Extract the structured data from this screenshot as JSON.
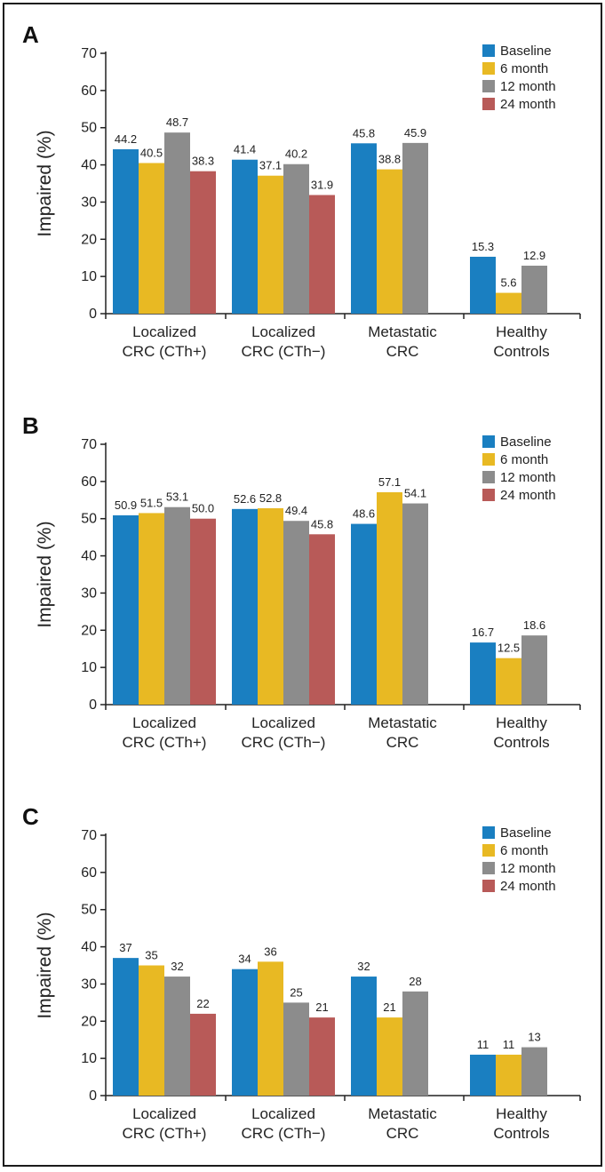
{
  "colors": {
    "Baseline": "#1a7fc1",
    "6 month": "#e8b923",
    "12 month": "#8c8c8c",
    "24 month": "#b85a58"
  },
  "chart_data": [
    {
      "type": "bar",
      "panel": "A",
      "categories": [
        [
          "Localized",
          "CRC (CTh+)"
        ],
        [
          "Localized",
          "CRC (CTh−)"
        ],
        [
          "Metastatic",
          "CRC"
        ],
        [
          "Healthy",
          "Controls"
        ]
      ],
      "ylabel": "Impaired (%)",
      "ylim": [
        0,
        70
      ],
      "yticks": [
        0,
        10,
        20,
        30,
        40,
        50,
        60,
        70
      ],
      "legend": "top-right",
      "series": [
        {
          "name": "Baseline",
          "values": [
            44.2,
            41.4,
            45.8,
            15.3
          ],
          "labels": [
            "44.2",
            "41.4",
            "45.8",
            "15.3"
          ]
        },
        {
          "name": "6 month",
          "values": [
            40.5,
            37.1,
            38.8,
            5.6
          ],
          "labels": [
            "40.5",
            "37.1",
            "38.8",
            "5.6"
          ]
        },
        {
          "name": "12 month",
          "values": [
            48.7,
            40.2,
            45.9,
            12.9
          ],
          "labels": [
            "48.7",
            "40.2",
            "45.9",
            "12.9"
          ]
        },
        {
          "name": "24 month",
          "values": [
            38.3,
            31.9,
            null,
            null
          ],
          "labels": [
            "38.3",
            "31.9",
            null,
            null
          ]
        }
      ]
    },
    {
      "type": "bar",
      "panel": "B",
      "categories": [
        [
          "Localized",
          "CRC (CTh+)"
        ],
        [
          "Localized",
          "CRC (CTh−)"
        ],
        [
          "Metastatic",
          "CRC"
        ],
        [
          "Healthy",
          "Controls"
        ]
      ],
      "ylabel": "Impaired (%)",
      "ylim": [
        0,
        70
      ],
      "yticks": [
        0,
        10,
        20,
        30,
        40,
        50,
        60,
        70
      ],
      "legend": "top-right",
      "series": [
        {
          "name": "Baseline",
          "values": [
            50.9,
            52.6,
            48.6,
            16.7
          ],
          "labels": [
            "50.9",
            "52.6",
            "48.6",
            "16.7"
          ]
        },
        {
          "name": "6 month",
          "values": [
            51.5,
            52.8,
            57.1,
            12.5
          ],
          "labels": [
            "51.5",
            "52.8",
            "57.1",
            "12.5"
          ]
        },
        {
          "name": "12 month",
          "values": [
            53.1,
            49.4,
            54.1,
            18.6
          ],
          "labels": [
            "53.1",
            "49.4",
            "54.1",
            "18.6"
          ]
        },
        {
          "name": "24 month",
          "values": [
            50.0,
            45.8,
            null,
            null
          ],
          "labels": [
            "50.0",
            "45.8",
            null,
            null
          ]
        }
      ]
    },
    {
      "type": "bar",
      "panel": "C",
      "categories": [
        [
          "Localized",
          "CRC (CTh+)"
        ],
        [
          "Localized",
          "CRC (CTh−)"
        ],
        [
          "Metastatic",
          "CRC"
        ],
        [
          "Healthy",
          "Controls"
        ]
      ],
      "ylabel": "Impaired (%)",
      "ylim": [
        0,
        70
      ],
      "yticks": [
        0,
        10,
        20,
        30,
        40,
        50,
        60,
        70
      ],
      "legend": "top-right",
      "series": [
        {
          "name": "Baseline",
          "values": [
            37,
            34,
            32,
            11
          ],
          "labels": [
            "37",
            "34",
            "32",
            "11"
          ]
        },
        {
          "name": "6 month",
          "values": [
            35,
            36,
            21,
            11
          ],
          "labels": [
            "35",
            "36",
            "21",
            "11"
          ]
        },
        {
          "name": "12 month",
          "values": [
            32,
            25,
            28,
            13
          ],
          "labels": [
            "32",
            "25",
            "28",
            "13"
          ]
        },
        {
          "name": "24 month",
          "values": [
            22,
            21,
            null,
            null
          ],
          "labels": [
            "22",
            "21",
            null,
            null
          ]
        }
      ]
    }
  ]
}
